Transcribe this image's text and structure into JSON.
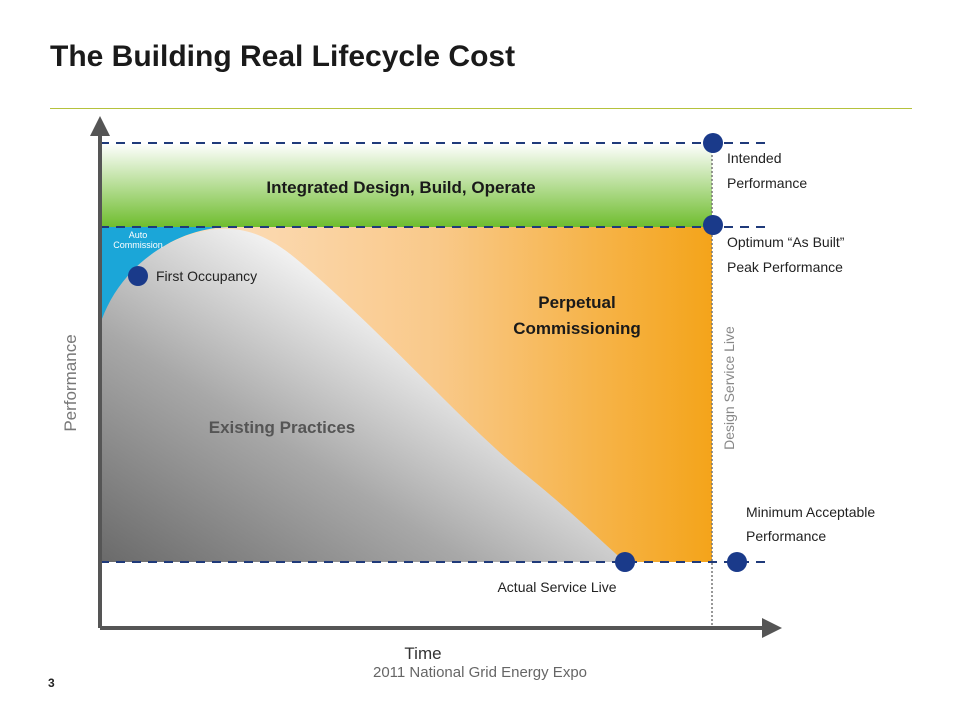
{
  "title": "The Building Real Lifecycle Cost",
  "axes": {
    "x_label": "Time",
    "y_label": "Performance"
  },
  "regions": {
    "integrated": "Integrated Design, Build, Operate",
    "perpetual_line1": "Perpetual",
    "perpetual_line2": "Commissioning",
    "existing": "Existing Practices",
    "auto_line1": "Auto",
    "auto_line2": "Commission"
  },
  "markers": {
    "first_occupancy": "First Occupancy",
    "intended_line1": "Intended",
    "intended_line2": "Performance",
    "optimum_line1": "Optimum “As Built”",
    "optimum_line2": "Peak Performance",
    "minimum_line1": "Minimum Acceptable",
    "minimum_line2": "Performance",
    "actual_service": "Actual Service Live",
    "design_service": "Design Service Live"
  },
  "footer": {
    "page_number": "3",
    "event": "2011 National Grid Energy Expo"
  },
  "colors": {
    "dashed_line": "#1f3a7a",
    "marker": "#1a3a8a",
    "green_top": "#ffffff",
    "green_bottom": "#78c13a",
    "orange": "#f5a81c",
    "cyan": "#1ba6d8",
    "axis": "#555555"
  }
}
